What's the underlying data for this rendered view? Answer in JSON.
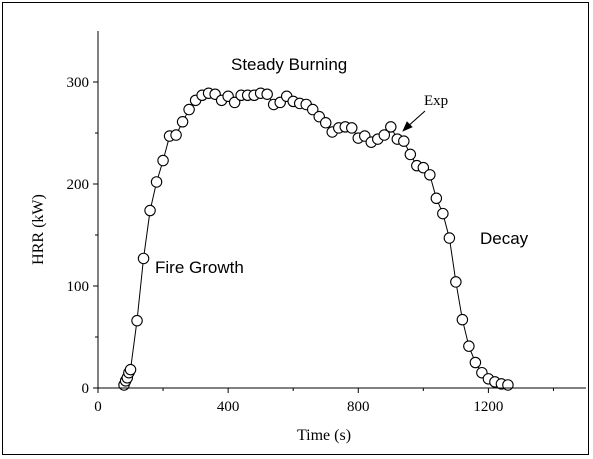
{
  "chart_data": {
    "type": "scatter",
    "title": "",
    "xlabel": "Time (s)",
    "ylabel": "HRR (kW)",
    "xlim": [
      0,
      1500
    ],
    "ylim": [
      0,
      350
    ],
    "xticks": [
      0,
      400,
      800,
      1200
    ],
    "yticks": [
      0,
      100,
      200,
      300
    ],
    "grid": false,
    "series": [
      {
        "connected": true,
        "marker": "open-circle",
        "x": [
          80,
          85,
          90,
          95,
          100,
          120,
          140,
          160,
          180,
          200,
          220,
          240,
          260,
          280,
          300,
          320,
          340,
          360,
          380,
          400,
          420,
          440,
          460,
          480,
          500,
          520,
          540,
          560,
          580,
          600,
          620,
          640,
          660,
          680,
          700,
          720,
          740,
          760,
          780,
          800,
          820,
          840,
          860,
          880,
          900,
          920,
          940,
          960,
          980,
          1000,
          1020,
          1040,
          1060,
          1080,
          1100,
          1120,
          1140,
          1160,
          1180,
          1200,
          1220,
          1240,
          1260
        ],
        "y": [
          3,
          7,
          10,
          15,
          18,
          66,
          127,
          174,
          202,
          223,
          247,
          248,
          261,
          273,
          282,
          287,
          289,
          288,
          282,
          286,
          280,
          287,
          287,
          287,
          289,
          288,
          278,
          280,
          286,
          281,
          279,
          278,
          273,
          266,
          260,
          251,
          255,
          256,
          255,
          245,
          247,
          241,
          244,
          248,
          256,
          244,
          242,
          229,
          218,
          216,
          209,
          186,
          171,
          147,
          104,
          67,
          41,
          25,
          15,
          9,
          6,
          4,
          3
        ]
      }
    ],
    "annotations": [
      {
        "text": "Steady Burning"
      },
      {
        "text": "Exp"
      },
      {
        "text": "Fire Growth"
      },
      {
        "text": "Decay"
      }
    ]
  }
}
